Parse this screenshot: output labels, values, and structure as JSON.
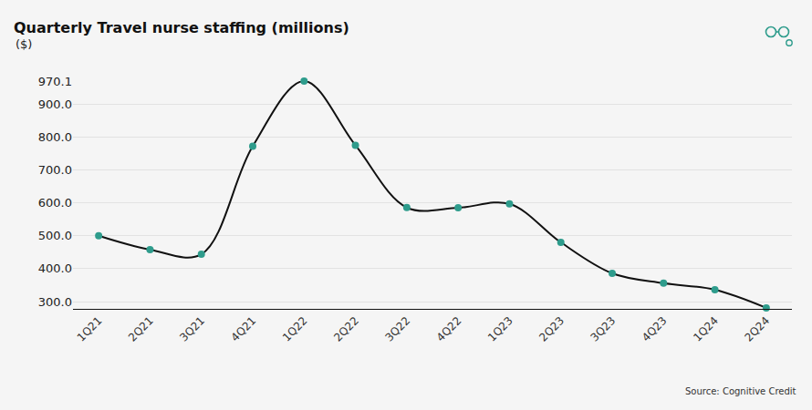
{
  "chart_data": {
    "type": "line",
    "title": "Quarterly Travel nurse staffing (millions)",
    "subtitle": "($)",
    "source": "Source: Cognitive Credit",
    "categories": [
      "1Q21",
      "2Q21",
      "3Q21",
      "4Q21",
      "1Q22",
      "2Q22",
      "3Q22",
      "4Q22",
      "1Q23",
      "2Q23",
      "3Q23",
      "4Q23",
      "1Q24",
      "2Q24"
    ],
    "values": [
      500,
      458,
      444,
      772,
      970.1,
      775,
      586,
      585,
      597,
      480,
      386,
      356,
      336,
      281
    ],
    "color": "#2e9c8c",
    "marker": "circle",
    "line_style": "smooth",
    "ylim": [
      278,
      970.1
    ],
    "yticks": [
      {
        "value": 300,
        "label": "300.0"
      },
      {
        "value": 400,
        "label": "400.0"
      },
      {
        "value": 500,
        "label": "500.0"
      },
      {
        "value": 600,
        "label": "600.0"
      },
      {
        "value": 700,
        "label": "700.0"
      },
      {
        "value": 800,
        "label": "800.0"
      },
      {
        "value": 900,
        "label": "900.0"
      },
      970.1
    ],
    "grid": true
  }
}
